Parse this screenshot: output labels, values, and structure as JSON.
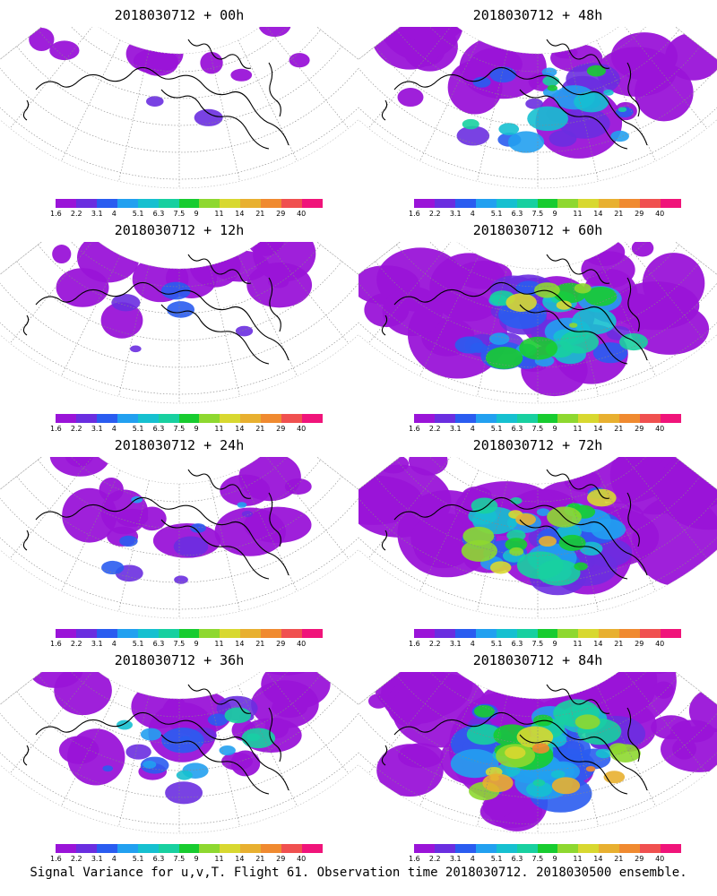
{
  "panels": [
    {
      "title": "2018030712 + 00h",
      "intensity": 0.1
    },
    {
      "title": "2018030712 + 48h",
      "intensity": 0.55
    },
    {
      "title": "2018030712 + 12h",
      "intensity": 0.22
    },
    {
      "title": "2018030712 + 60h",
      "intensity": 0.7
    },
    {
      "title": "2018030712 + 24h",
      "intensity": 0.3
    },
    {
      "title": "2018030712 + 72h",
      "intensity": 0.82
    },
    {
      "title": "2018030712 + 36h",
      "intensity": 0.42
    },
    {
      "title": "2018030712 + 84h",
      "intensity": 0.95
    }
  ],
  "colorbar": {
    "labels": [
      "1.6",
      "2.2",
      "3.1",
      "4",
      "5.1",
      "6.3",
      "7.5",
      "9",
      "11",
      "14",
      "21",
      "29",
      "40"
    ],
    "colors": [
      "#9a14d8",
      "#6a2ee0",
      "#2a5cf0",
      "#22a0f0",
      "#16c0d0",
      "#18d0a0",
      "#18cc30",
      "#8ed830",
      "#d8d830",
      "#e8b030",
      "#f08a30",
      "#f05050",
      "#f0147a"
    ]
  },
  "footer": "Signal Variance for u,v,T. Flight 61. Observation time 2018030712. 2018030500 ensemble."
}
